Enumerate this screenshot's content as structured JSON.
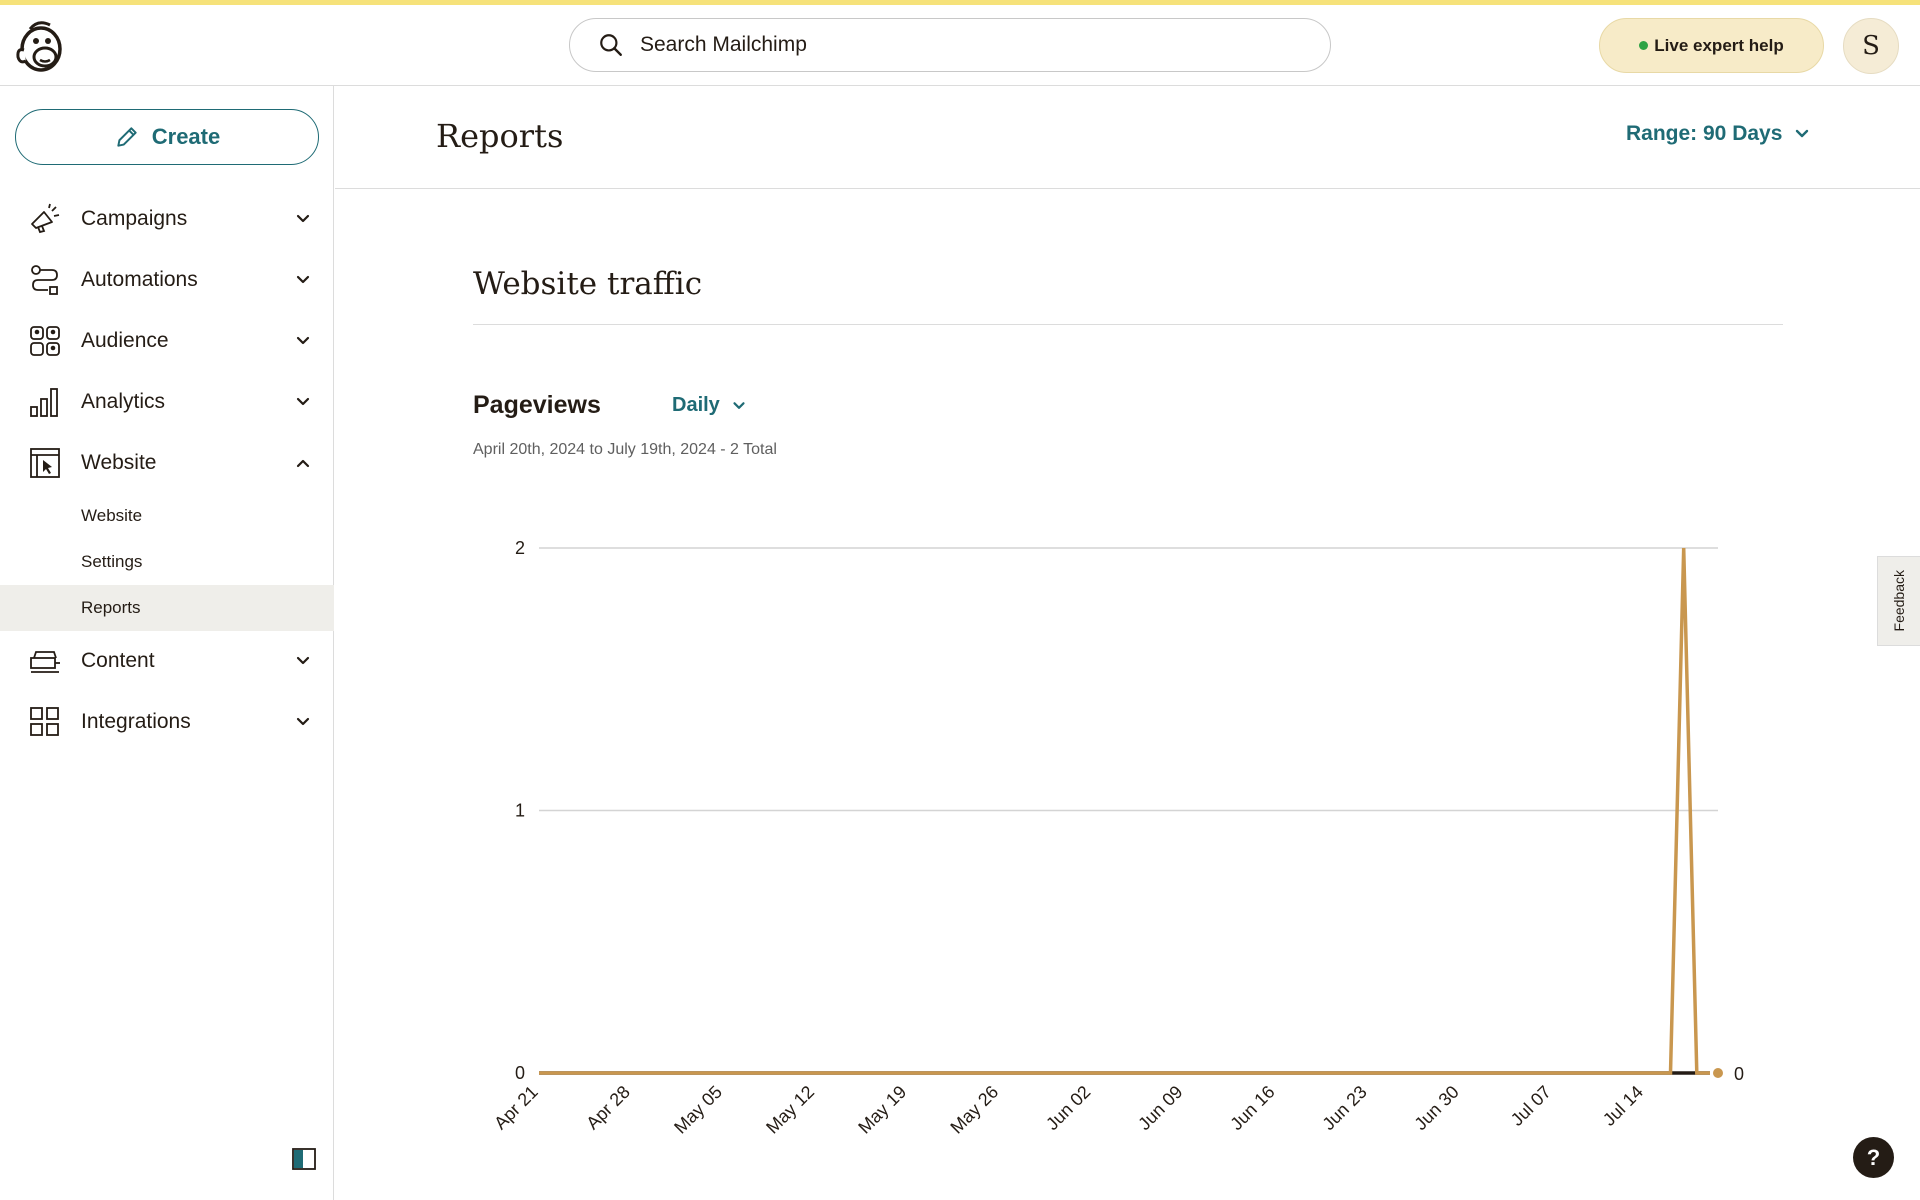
{
  "topbar": {
    "search_placeholder": "Search Mailchimp",
    "help_label": "Live expert help",
    "avatar_initial": "S"
  },
  "sidebar": {
    "create_label": "Create",
    "items": [
      {
        "label": "Campaigns",
        "icon": "megaphone-icon",
        "expanded": false
      },
      {
        "label": "Automations",
        "icon": "automation-flow-icon",
        "expanded": false
      },
      {
        "label": "Audience",
        "icon": "audience-icon",
        "expanded": false
      },
      {
        "label": "Analytics",
        "icon": "bar-chart-icon",
        "expanded": false
      },
      {
        "label": "Website",
        "icon": "website-cursor-icon",
        "expanded": true
      },
      {
        "label": "Content",
        "icon": "content-stack-icon",
        "expanded": false
      },
      {
        "label": "Integrations",
        "icon": "grid-icon",
        "expanded": false
      }
    ],
    "website_subitems": [
      {
        "label": "Website",
        "active": false
      },
      {
        "label": "Settings",
        "active": false
      },
      {
        "label": "Reports",
        "active": true
      }
    ]
  },
  "header": {
    "title": "Reports",
    "range_label": "Range: 90 Days"
  },
  "section": {
    "title": "Website traffic",
    "metric": "Pageviews",
    "granularity": "Daily",
    "subtitle": "April 20th, 2024 to July 19th, 2024 - 2 Total"
  },
  "feedback_label": "Feedback",
  "help_button": "?",
  "colors": {
    "accent": "#1f6b75",
    "line": "#c9974f",
    "topstripe": "#f6e27a"
  },
  "chart_data": {
    "type": "line",
    "x_start": "2024-04-21",
    "x_end": "2024-07-19",
    "tick_labels": [
      "Apr 21",
      "Apr 28",
      "May 05",
      "May 12",
      "May 19",
      "May 26",
      "Jun 02",
      "Jun 09",
      "Jun 16",
      "Jun 23",
      "Jun 30",
      "Jul 07",
      "Jul 14"
    ],
    "tick_dates": [
      "2024-04-21",
      "2024-04-28",
      "2024-05-05",
      "2024-05-12",
      "2024-05-19",
      "2024-05-26",
      "2024-06-02",
      "2024-06-09",
      "2024-06-16",
      "2024-06-23",
      "2024-06-30",
      "2024-07-07",
      "2024-07-14"
    ],
    "y_ticks": [
      "0",
      "1",
      "2"
    ],
    "ylim": [
      0,
      2
    ],
    "series": [
      {
        "points": [
          [
            "2024-04-21",
            0
          ],
          [
            "2024-07-16",
            0
          ],
          [
            "2024-07-17",
            2
          ],
          [
            "2024-07-18",
            0
          ],
          [
            "2024-07-19",
            0
          ]
        ]
      }
    ],
    "end_value_label": "0",
    "grid": true
  }
}
